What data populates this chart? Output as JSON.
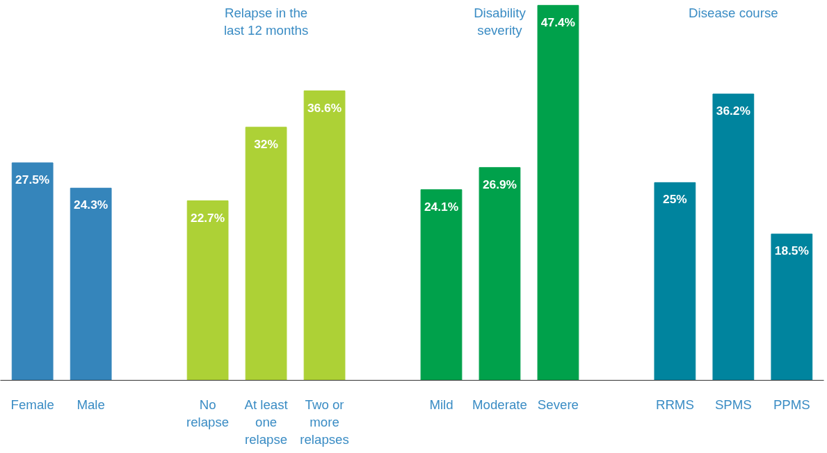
{
  "chart_data": {
    "type": "bar",
    "categories": [
      "Female",
      "Male",
      null,
      "No relapse",
      "At least one relapse",
      "Two or more relapses",
      null,
      "Mild",
      "Moderate",
      "Severe",
      null,
      "RRMS",
      "SPMS",
      "PPMS"
    ],
    "series": [
      {
        "color": "#3585bb",
        "values": [
          27.5,
          24.3,
          null,
          null,
          null,
          null,
          null,
          null,
          null,
          null,
          null,
          null,
          null,
          null
        ],
        "value_labels": [
          "27.5%",
          "24.3%",
          null,
          null,
          null,
          null,
          null,
          null,
          null,
          null,
          null,
          null,
          null,
          null
        ]
      },
      {
        "color": "#add136",
        "values": [
          null,
          null,
          null,
          22.7,
          32,
          36.6,
          null,
          null,
          null,
          null,
          null,
          null,
          null,
          null
        ],
        "value_labels": [
          null,
          null,
          null,
          "22.7%",
          "32%",
          "36.6%",
          null,
          null,
          null,
          null,
          null,
          null,
          null,
          null
        ]
      },
      {
        "color": "#00a14b",
        "values": [
          null,
          null,
          null,
          null,
          null,
          null,
          null,
          24.1,
          26.9,
          47.4,
          null,
          null,
          null,
          null
        ],
        "value_labels": [
          null,
          null,
          null,
          null,
          null,
          null,
          null,
          "24.1%",
          "26.9%",
          "47.4%",
          null,
          null,
          null,
          null
        ]
      },
      {
        "color": "#00849e",
        "values": [
          null,
          null,
          null,
          null,
          null,
          null,
          null,
          null,
          null,
          null,
          null,
          25,
          36.2,
          18.5
        ],
        "value_labels": [
          null,
          null,
          null,
          null,
          null,
          null,
          null,
          null,
          null,
          null,
          null,
          "25%",
          "36.2%",
          "18.5%"
        ]
      }
    ],
    "annotations": [
      "Relapse in the last 12 months",
      "Disability severity",
      "Disease course"
    ],
    "ylim": [
      0,
      47.6
    ],
    "tick_labels": "x",
    "grid": false
  }
}
